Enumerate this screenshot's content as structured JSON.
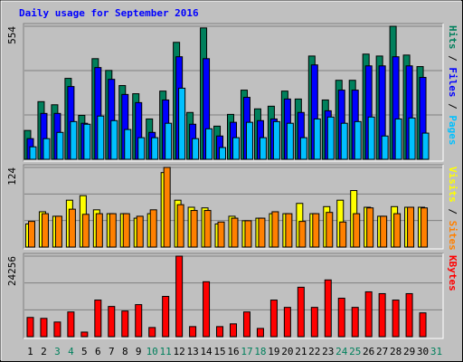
{
  "chart_data": [
    {
      "type": "bar",
      "title": "Daily usage for September 2016",
      "title_color": "#0000ff",
      "ylim": [
        0,
        554
      ],
      "yticks": [
        554
      ],
      "legend_separator": " / ",
      "series": [
        {
          "name": "Hits",
          "color": "#00805c",
          "values": [
            120,
            240,
            227,
            337,
            183,
            419,
            370,
            307,
            273,
            168,
            284,
            487,
            195,
            547,
            138,
            187,
            288,
            210,
            221,
            284,
            251,
            430,
            247,
            329,
            329,
            438,
            430,
            554,
            434,
            386,
            null
          ]
        },
        {
          "name": "Files",
          "color": "#0000ff",
          "values": [
            86,
            191,
            191,
            303,
            150,
            382,
            333,
            270,
            236,
            112,
            247,
            427,
            146,
            419,
            97,
            154,
            258,
            161,
            168,
            251,
            195,
            393,
            202,
            288,
            288,
            389,
            389,
            427,
            389,
            341,
            null
          ]
        },
        {
          "name": "Pages",
          "color": "#00c0ff",
          "values": [
            52,
            86,
            112,
            157,
            146,
            180,
            161,
            124,
            90,
            90,
            150,
            296,
            86,
            127,
            49,
            90,
            154,
            90,
            157,
            150,
            90,
            168,
            176,
            150,
            157,
            176,
            97,
            168,
            172,
            109,
            null
          ]
        }
      ]
    },
    {
      "type": "bar",
      "ylim": [
        0,
        124
      ],
      "yticks": [
        124
      ],
      "legend_separator": " / ",
      "series": [
        {
          "name": "Visits",
          "color": "#ffff00",
          "values": [
            36,
            55,
            48,
            73,
            80,
            58,
            52,
            52,
            45,
            52,
            116,
            73,
            62,
            61,
            36,
            48,
            41,
            45,
            52,
            52,
            68,
            52,
            63,
            73,
            88,
            62,
            48,
            63,
            62,
            62,
            null
          ]
        },
        {
          "name": "Sites",
          "color": "#ff8000",
          "values": [
            40,
            52,
            48,
            59,
            51,
            52,
            52,
            52,
            48,
            58,
            124,
            66,
            57,
            57,
            39,
            45,
            41,
            45,
            55,
            52,
            40,
            52,
            54,
            39,
            52,
            61,
            48,
            52,
            62,
            61,
            null
          ]
        }
      ]
    },
    {
      "type": "bar",
      "ylim": [
        0,
        24256
      ],
      "yticks": [
        24256
      ],
      "categories": [
        "1",
        "2",
        "3",
        "4",
        "5",
        "6",
        "7",
        "8",
        "9",
        "10",
        "11",
        "12",
        "13",
        "14",
        "15",
        "16",
        "17",
        "18",
        "19",
        "20",
        "21",
        "22",
        "23",
        "24",
        "25",
        "26",
        "27",
        "28",
        "29",
        "30",
        "31"
      ],
      "weekend_days": [
        2,
        3,
        9,
        10,
        16,
        17,
        23,
        24,
        30
      ],
      "weekday_color": "#000000",
      "weekend_color": "#00805c",
      "series": [
        {
          "name": "KBytes",
          "color": "#ff0000",
          "values": [
            5789,
            5513,
            4410,
            7442,
            1378,
            11025,
            9096,
            7718,
            9647,
            2756,
            12128,
            24256,
            3032,
            16538,
            3032,
            3859,
            7442,
            2481,
            11025,
            8820,
            14884,
            8820,
            17089,
            11576,
            8820,
            13505,
            12955,
            11025,
            12955,
            7166,
            null
          ]
        }
      ]
    }
  ]
}
